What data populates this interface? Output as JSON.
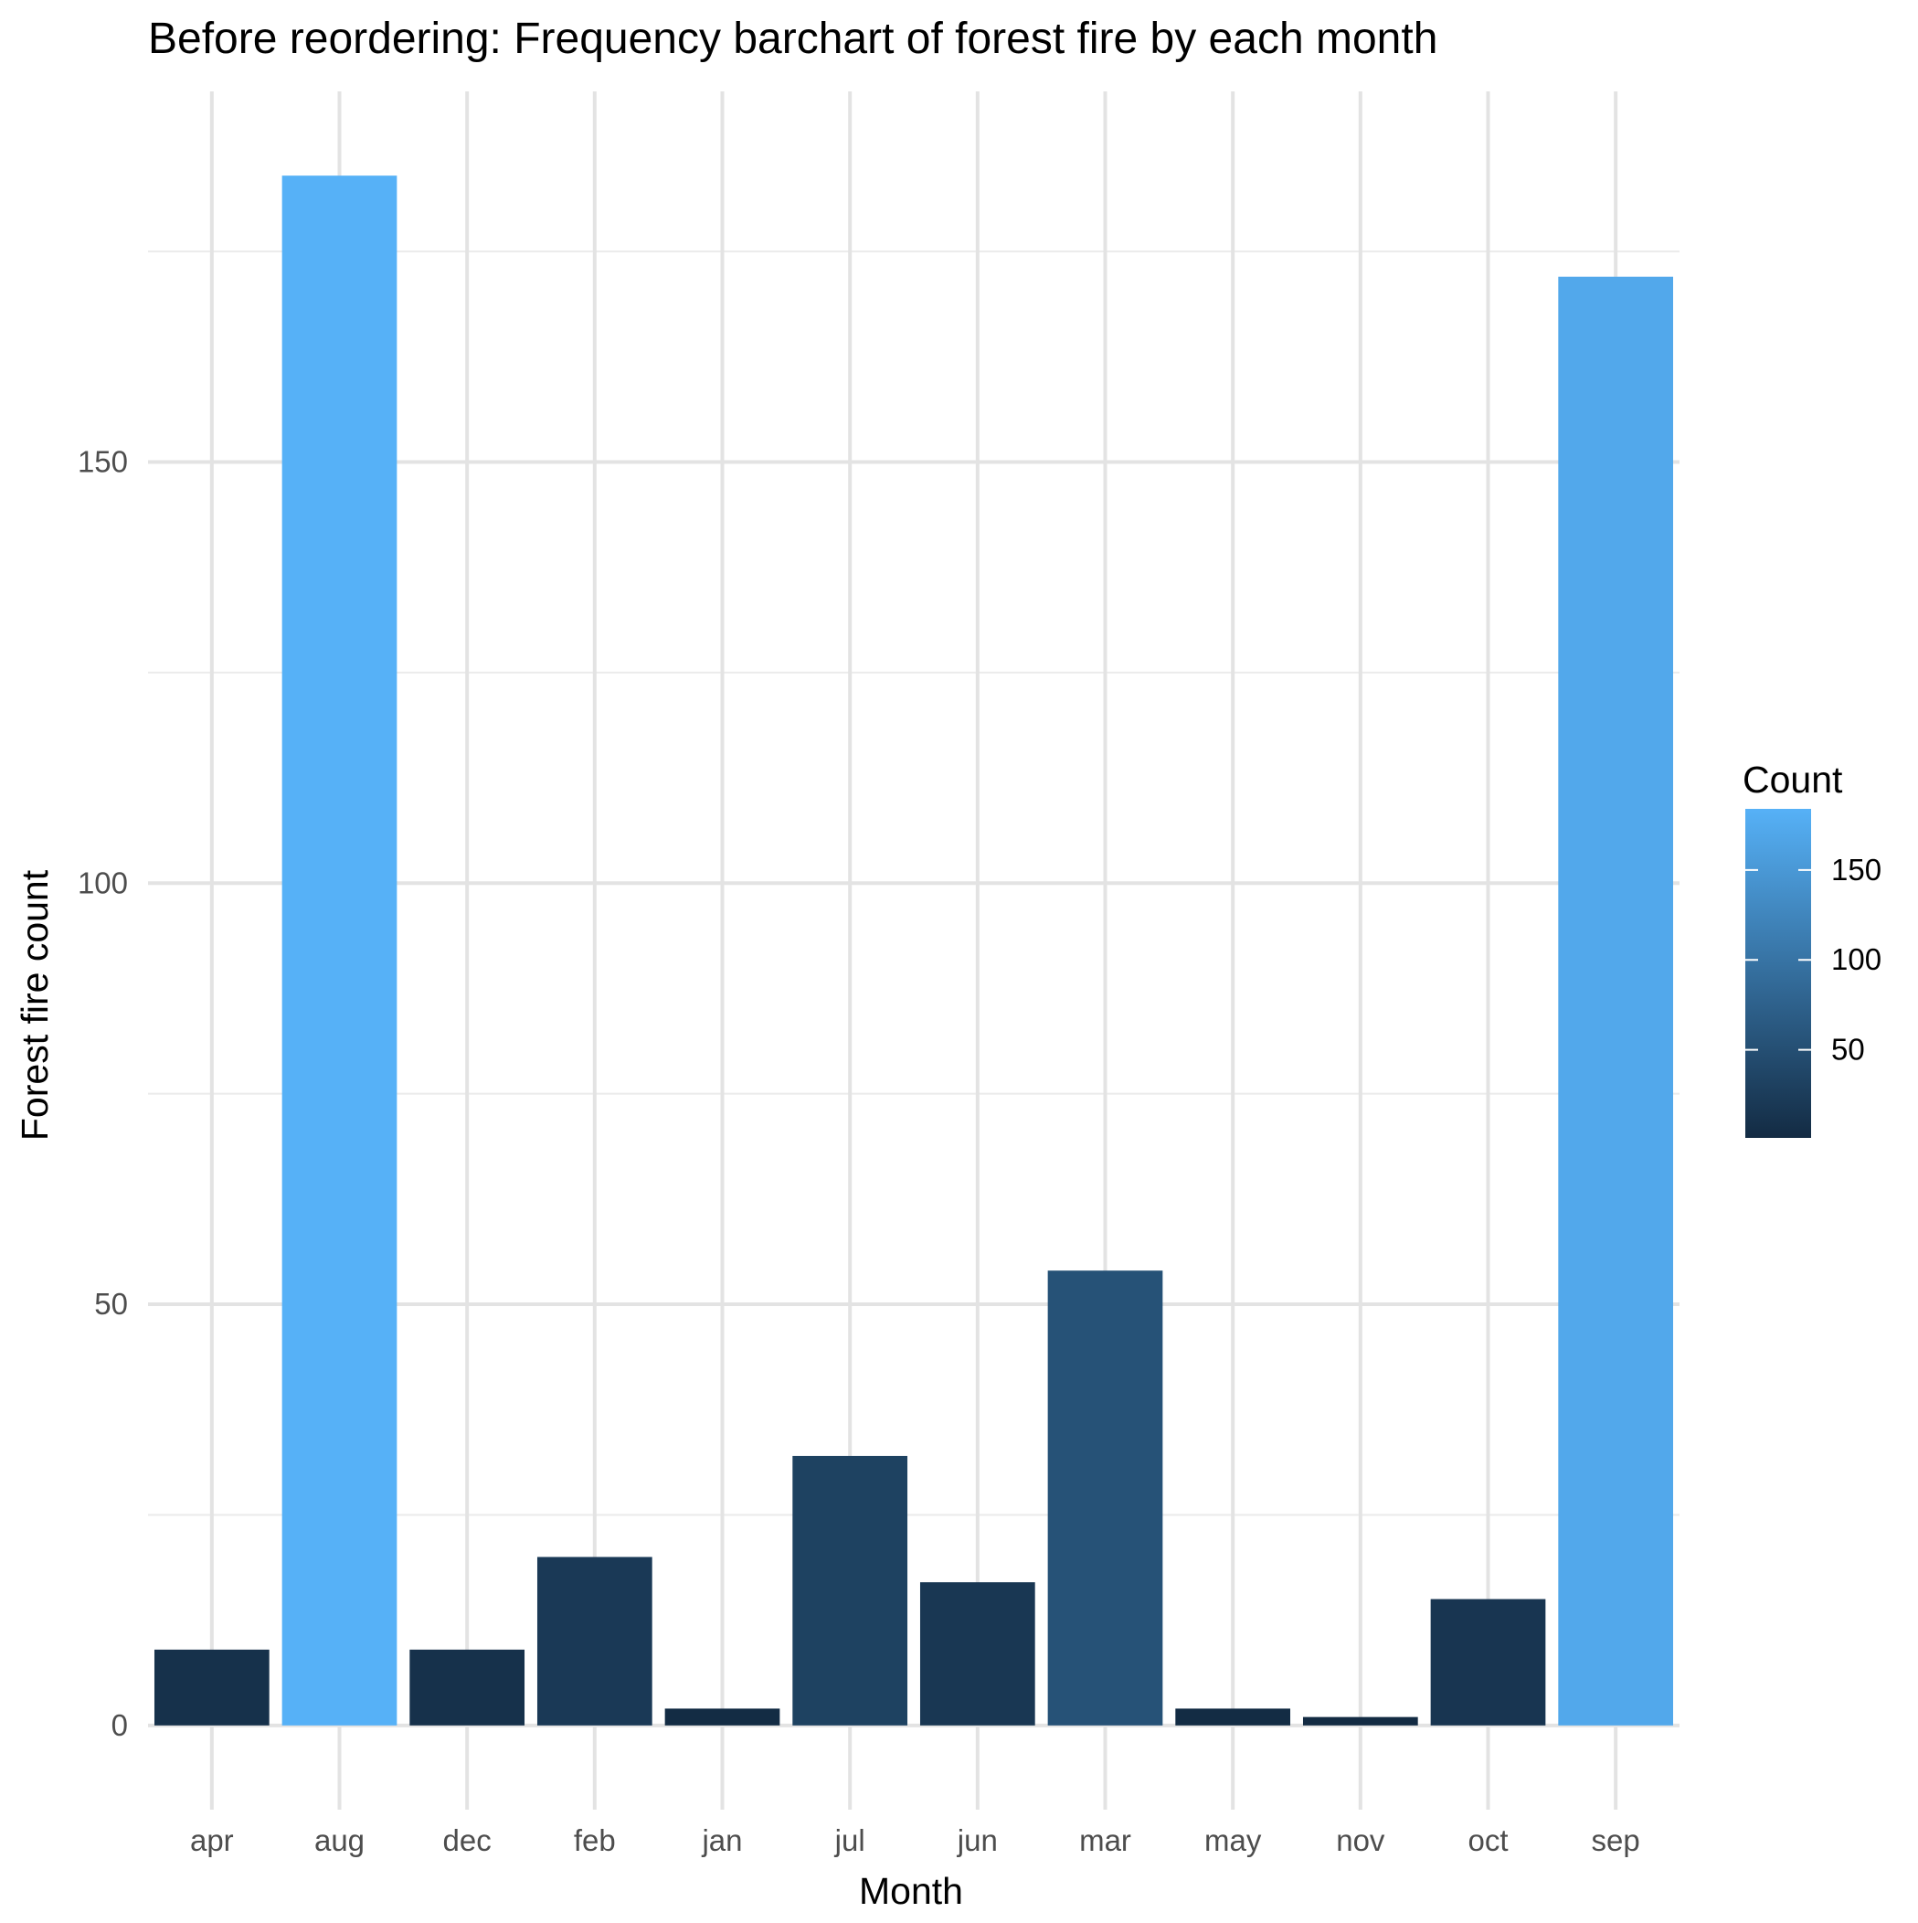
{
  "chart_data": {
    "type": "bar",
    "title": "Before reordering: Frequency barchart of forest fire by each month",
    "xlabel": "Month",
    "ylabel": "Forest fire count",
    "categories": [
      "apr",
      "aug",
      "dec",
      "feb",
      "jan",
      "jul",
      "jun",
      "mar",
      "may",
      "nov",
      "oct",
      "sep"
    ],
    "values": [
      9,
      184,
      9,
      20,
      2,
      32,
      17,
      54,
      2,
      1,
      15,
      172
    ],
    "ylim": [
      -10,
      194
    ],
    "yticks": [
      0,
      50,
      100,
      150
    ],
    "grid": true,
    "legend": {
      "title": "Count",
      "type": "colorbar",
      "placement": "right",
      "ticks": [
        50,
        100,
        150
      ],
      "range": [
        1,
        184
      ],
      "color_low": "#132B43",
      "color_high": "#56B1F7"
    }
  }
}
